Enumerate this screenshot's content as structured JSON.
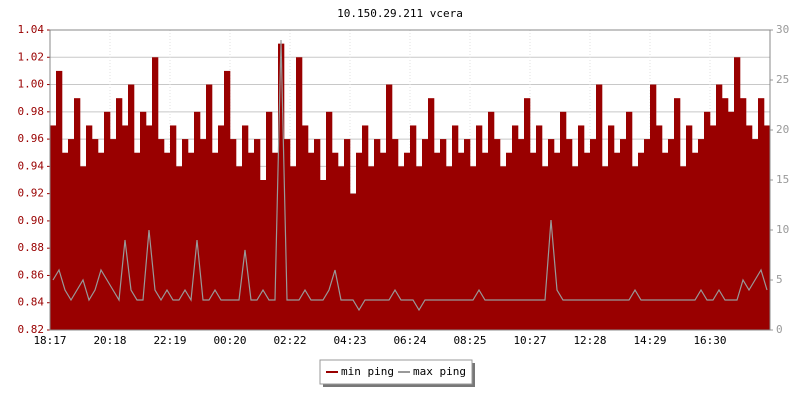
{
  "chart_data": {
    "type": "line",
    "title": "10.150.29.211 vcera",
    "categories": [
      "18:17",
      null,
      null,
      null,
      null,
      null,
      null,
      null,
      null,
      null,
      "20:18",
      null,
      null,
      null,
      null,
      null,
      null,
      null,
      null,
      null,
      "22:19",
      null,
      null,
      null,
      null,
      null,
      null,
      null,
      null,
      null,
      "00:20",
      null,
      null,
      null,
      null,
      null,
      null,
      null,
      null,
      null,
      "02:22",
      null,
      null,
      null,
      null,
      null,
      null,
      null,
      null,
      null,
      "04:23",
      null,
      null,
      null,
      null,
      null,
      null,
      null,
      null,
      null,
      "06:24",
      null,
      null,
      null,
      null,
      null,
      null,
      null,
      null,
      null,
      "08:25",
      null,
      null,
      null,
      null,
      null,
      null,
      null,
      null,
      null,
      "10:27",
      null,
      null,
      null,
      null,
      null,
      null,
      null,
      null,
      null,
      "12:28",
      null,
      null,
      null,
      null,
      null,
      null,
      null,
      null,
      null,
      "14:29",
      null,
      null,
      null,
      null,
      null,
      null,
      null,
      null,
      null,
      "16:30",
      null,
      null,
      null,
      null,
      null,
      null,
      null,
      null,
      null
    ],
    "series": [
      {
        "name": "min ping",
        "color": "#990000",
        "type": "area",
        "values": [
          0.97,
          1.01,
          0.95,
          0.96,
          0.99,
          0.94,
          0.97,
          0.96,
          0.95,
          0.98,
          0.96,
          0.99,
          0.97,
          1.0,
          0.95,
          0.98,
          0.97,
          1.02,
          0.96,
          0.95,
          0.97,
          0.94,
          0.96,
          0.95,
          0.98,
          0.96,
          1.0,
          0.95,
          0.97,
          1.01,
          0.96,
          0.94,
          0.97,
          0.95,
          0.96,
          0.93,
          0.98,
          0.95,
          1.03,
          0.96,
          0.94,
          1.02,
          0.97,
          0.95,
          0.96,
          0.93,
          0.98,
          0.95,
          0.94,
          0.96,
          0.92,
          0.95,
          0.97,
          0.94,
          0.96,
          0.95,
          1.0,
          0.96,
          0.94,
          0.95,
          0.97,
          0.94,
          0.96,
          0.99,
          0.95,
          0.96,
          0.94,
          0.97,
          0.95,
          0.96,
          0.94,
          0.97,
          0.95,
          0.98,
          0.96,
          0.94,
          0.95,
          0.97,
          0.96,
          0.99,
          0.95,
          0.97,
          0.94,
          0.96,
          0.95,
          0.98,
          0.96,
          0.94,
          0.97,
          0.95,
          0.96,
          1.0,
          0.94,
          0.97,
          0.95,
          0.96,
          0.98,
          0.94,
          0.95,
          0.96,
          1.0,
          0.97,
          0.95,
          0.96,
          0.99,
          0.94,
          0.97,
          0.95,
          0.96,
          0.98,
          0.97,
          1.0,
          0.99,
          0.98,
          1.02,
          0.99,
          0.97,
          0.96,
          0.99,
          0.97
        ]
      },
      {
        "name": "max ping",
        "color": "#999999",
        "type": "line",
        "axis": "y2",
        "values": [
          5,
          6,
          4,
          3,
          4,
          5,
          3,
          4,
          6,
          5,
          4,
          3,
          9,
          4,
          3,
          3,
          10,
          4,
          3,
          4,
          3,
          3,
          4,
          3,
          9,
          3,
          3,
          4,
          3,
          3,
          3,
          3,
          8,
          3,
          3,
          4,
          3,
          3,
          29,
          3,
          3,
          3,
          4,
          3,
          3,
          3,
          4,
          6,
          3,
          3,
          3,
          2,
          3,
          3,
          3,
          3,
          3,
          4,
          3,
          3,
          3,
          2,
          3,
          3,
          3,
          3,
          3,
          3,
          3,
          3,
          3,
          4,
          3,
          3,
          3,
          3,
          3,
          3,
          3,
          3,
          3,
          3,
          3,
          11,
          4,
          3,
          3,
          3,
          3,
          3,
          3,
          3,
          3,
          3,
          3,
          3,
          3,
          4,
          3,
          3,
          3,
          3,
          3,
          3,
          3,
          3,
          3,
          3,
          4,
          3,
          3,
          4,
          3,
          3,
          3,
          5,
          4,
          5,
          6,
          4
        ]
      }
    ],
    "ylim": [
      0.82,
      1.04
    ],
    "yticks": [
      0.82,
      0.84,
      0.86,
      0.88,
      {
        "value": 0.9,
        "label": "0.90"
      },
      0.92,
      0.94,
      0.96,
      0.98,
      {
        "value": 1.0,
        "label": "1.00"
      },
      1.02,
      1.04
    ],
    "y2lim": [
      0,
      30
    ],
    "y2ticks": [
      0,
      5,
      10,
      15,
      20,
      25,
      30
    ],
    "grid": true
  }
}
